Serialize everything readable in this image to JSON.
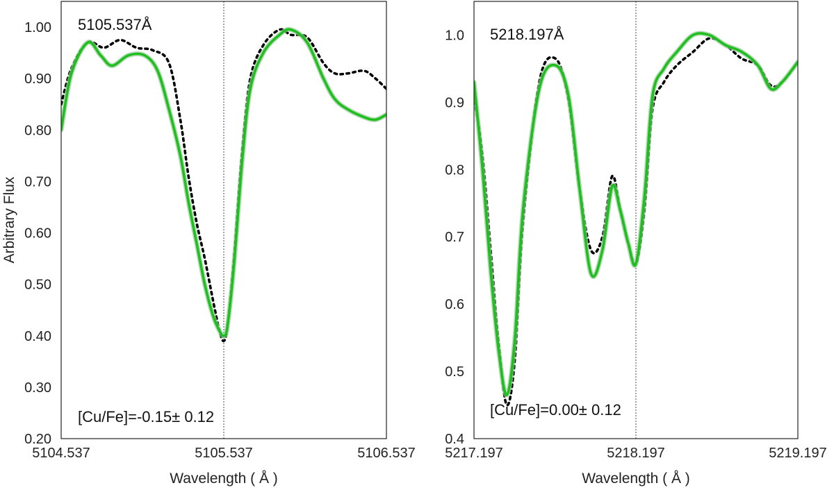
{
  "chart_data": [
    {
      "type": "line",
      "title_annotation": "5105.537Å",
      "result_annotation": "[Cu/Fe]=-0.15± 0.12",
      "xlabel": "Wavelength ( Å )",
      "ylabel": "Arbitrary Flux",
      "xlim": [
        5104.537,
        5106.537
      ],
      "ylim": [
        0.2,
        1.05
      ],
      "xticks": [
        5104.537,
        5105.537,
        5106.537
      ],
      "xtick_labels": [
        "5104.537",
        "5105.537",
        "5106.537"
      ],
      "yticks": [
        0.2,
        0.3,
        0.4,
        0.5,
        0.6,
        0.7,
        0.8,
        0.9,
        1.0
      ],
      "ytick_labels": [
        "0.20",
        "0.30",
        "0.40",
        "0.50",
        "0.60",
        "0.70",
        "0.80",
        "0.90",
        "1.00"
      ],
      "vline": 5105.537,
      "grid": false,
      "series": [
        {
          "style": "dotted",
          "color": "#000000",
          "x": [
            5104.537,
            5104.6,
            5104.7,
            5104.8,
            5104.9,
            5105.0,
            5105.1,
            5105.2,
            5105.27,
            5105.32,
            5105.37,
            5105.42,
            5105.47,
            5105.51,
            5105.537,
            5105.56,
            5105.6,
            5105.65,
            5105.7,
            5105.78,
            5105.88,
            5105.95,
            5106.05,
            5106.15,
            5106.22,
            5106.3,
            5106.4,
            5106.47,
            5106.537
          ],
          "y": [
            0.85,
            0.92,
            0.97,
            0.96,
            0.975,
            0.96,
            0.955,
            0.93,
            0.82,
            0.71,
            0.62,
            0.55,
            0.47,
            0.41,
            0.39,
            0.42,
            0.55,
            0.76,
            0.9,
            0.965,
            0.995,
            0.985,
            0.98,
            0.93,
            0.91,
            0.91,
            0.915,
            0.9,
            0.88
          ]
        },
        {
          "style": "solid",
          "color": "#1fbf1f",
          "x": [
            5104.537,
            5104.6,
            5104.7,
            5104.78,
            5104.85,
            5104.95,
            5105.05,
            5105.13,
            5105.2,
            5105.27,
            5105.32,
            5105.37,
            5105.42,
            5105.47,
            5105.51,
            5105.537,
            5105.56,
            5105.6,
            5105.65,
            5105.7,
            5105.78,
            5105.88,
            5105.95,
            5106.05,
            5106.15,
            5106.22,
            5106.3,
            5106.4,
            5106.47,
            5106.537
          ],
          "y": [
            0.8,
            0.91,
            0.97,
            0.945,
            0.925,
            0.945,
            0.945,
            0.915,
            0.84,
            0.75,
            0.66,
            0.58,
            0.5,
            0.44,
            0.41,
            0.4,
            0.42,
            0.54,
            0.74,
            0.88,
            0.95,
            0.985,
            0.995,
            0.97,
            0.9,
            0.86,
            0.84,
            0.825,
            0.82,
            0.83
          ]
        }
      ]
    },
    {
      "type": "line",
      "title_annotation": "5218.197Å",
      "result_annotation": "[Cu/Fe]=0.00± 0.12",
      "xlabel": "Wavelength ( Å )",
      "ylabel": "",
      "xlim": [
        5217.197,
        5219.197
      ],
      "ylim": [
        0.4,
        1.05
      ],
      "xticks": [
        5217.197,
        5218.197,
        5219.197
      ],
      "xtick_labels": [
        "5217.197",
        "5218.197",
        "5219.197"
      ],
      "yticks": [
        0.4,
        0.5,
        0.6,
        0.7,
        0.8,
        0.9,
        1.0
      ],
      "ytick_labels": [
        "0.4",
        "0.5",
        "0.6",
        "0.7",
        "0.8",
        "0.9",
        "1.0"
      ],
      "vline": 5218.197,
      "grid": false,
      "series": [
        {
          "style": "dotted",
          "color": "#000000",
          "x": [
            5217.197,
            5217.25,
            5217.3,
            5217.35,
            5217.4,
            5217.45,
            5217.5,
            5217.6,
            5217.7,
            5217.78,
            5217.85,
            5217.92,
            5217.99,
            5218.05,
            5218.1,
            5218.15,
            5218.197,
            5218.25,
            5218.3,
            5218.37,
            5218.45,
            5218.55,
            5218.65,
            5218.75,
            5218.85,
            5218.95,
            5219.03,
            5219.1,
            5219.197
          ],
          "y": [
            0.91,
            0.82,
            0.68,
            0.54,
            0.45,
            0.52,
            0.72,
            0.93,
            0.965,
            0.905,
            0.77,
            0.68,
            0.7,
            0.79,
            0.74,
            0.69,
            0.66,
            0.74,
            0.89,
            0.93,
            0.955,
            0.975,
            0.995,
            0.985,
            0.965,
            0.955,
            0.925,
            0.93,
            0.96
          ]
        },
        {
          "style": "solid",
          "color": "#1fbf1f",
          "x": [
            5217.197,
            5217.25,
            5217.3,
            5217.35,
            5217.4,
            5217.45,
            5217.5,
            5217.6,
            5217.7,
            5217.78,
            5217.85,
            5217.92,
            5217.99,
            5218.05,
            5218.1,
            5218.15,
            5218.197,
            5218.25,
            5218.3,
            5218.37,
            5218.45,
            5218.55,
            5218.65,
            5218.75,
            5218.85,
            5218.95,
            5219.03,
            5219.1,
            5219.197
          ],
          "y": [
            0.93,
            0.8,
            0.65,
            0.53,
            0.465,
            0.55,
            0.74,
            0.92,
            0.955,
            0.91,
            0.77,
            0.645,
            0.68,
            0.775,
            0.74,
            0.69,
            0.66,
            0.76,
            0.91,
            0.95,
            0.975,
            1.0,
            1.0,
            0.985,
            0.975,
            0.955,
            0.92,
            0.93,
            0.96
          ]
        }
      ]
    }
  ]
}
